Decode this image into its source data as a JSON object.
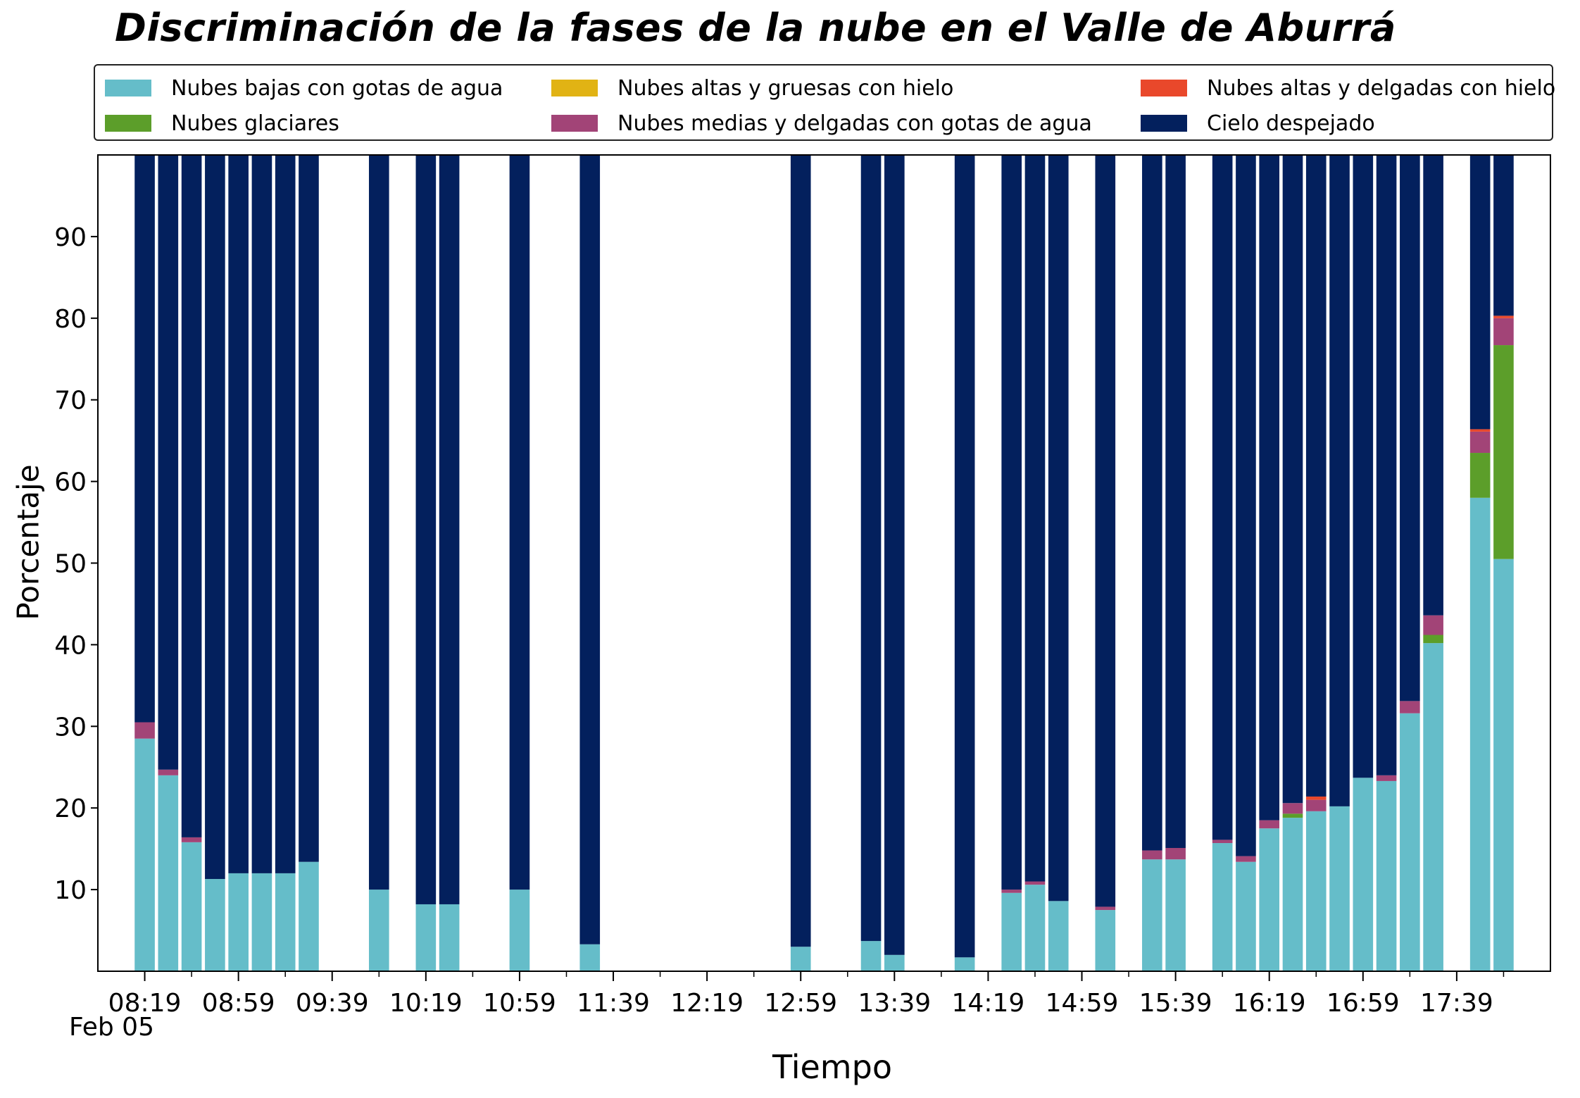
{
  "chart_data": {
    "type": "bar",
    "stacked": true,
    "title": "Discriminación de la fases de la nube en el Valle de Aburrá",
    "xlabel": "Tiempo",
    "ylabel": "Porcentaje",
    "date_label": "Feb 05",
    "ylim": [
      0,
      100
    ],
    "yticks": [
      10,
      20,
      30,
      40,
      50,
      60,
      70,
      80,
      90
    ],
    "xlim": [
      "07:59",
      "18:19"
    ],
    "xtick_labels": [
      "08:19",
      "08:59",
      "09:39",
      "10:19",
      "10:59",
      "11:39",
      "12:19",
      "12:59",
      "13:39",
      "14:19",
      "14:59",
      "15:39",
      "16:19",
      "16:59",
      "17:39"
    ],
    "legend_position": "top",
    "grid": false,
    "series": [
      {
        "key": "bajas",
        "name": "Nubes bajas con gotas de agua",
        "color": "#65bdc9"
      },
      {
        "key": "glaciares",
        "name": "Nubes glaciares",
        "color": "#5c9e2a"
      },
      {
        "key": "altas_gruesas",
        "name": "Nubes altas y gruesas con hielo",
        "color": "#e1b314"
      },
      {
        "key": "medias_delgadas",
        "name": "Nubes medias y delgadas con gotas de agua",
        "color": "#a24477"
      },
      {
        "key": "altas_delgadas",
        "name": "Nubes altas y delgadas con hielo",
        "color": "#e9482b"
      },
      {
        "key": "despejado",
        "name": "Cielo despejado",
        "color": "#03205d"
      }
    ],
    "bars": [
      {
        "time": "08:19",
        "bajas": 28.5,
        "glaciares": 0,
        "altas_gruesas": 0,
        "medias_delgadas": 2.0,
        "altas_delgadas": 0,
        "despejado": 69.5
      },
      {
        "time": "08:29",
        "bajas": 24.0,
        "glaciares": 0,
        "altas_gruesas": 0,
        "medias_delgadas": 0.7,
        "altas_delgadas": 0,
        "despejado": 75.3
      },
      {
        "time": "08:39",
        "bajas": 15.8,
        "glaciares": 0,
        "altas_gruesas": 0,
        "medias_delgadas": 0.6,
        "altas_delgadas": 0,
        "despejado": 83.6
      },
      {
        "time": "08:49",
        "bajas": 11.3,
        "glaciares": 0,
        "altas_gruesas": 0,
        "medias_delgadas": 0,
        "altas_delgadas": 0,
        "despejado": 88.7
      },
      {
        "time": "08:59",
        "bajas": 12.0,
        "glaciares": 0,
        "altas_gruesas": 0,
        "medias_delgadas": 0,
        "altas_delgadas": 0,
        "despejado": 88.0
      },
      {
        "time": "09:09",
        "bajas": 12.0,
        "glaciares": 0,
        "altas_gruesas": 0,
        "medias_delgadas": 0,
        "altas_delgadas": 0,
        "despejado": 88.0
      },
      {
        "time": "09:19",
        "bajas": 12.0,
        "glaciares": 0,
        "altas_gruesas": 0,
        "medias_delgadas": 0,
        "altas_delgadas": 0,
        "despejado": 88.0
      },
      {
        "time": "09:29",
        "bajas": 13.4,
        "glaciares": 0,
        "altas_gruesas": 0,
        "medias_delgadas": 0,
        "altas_delgadas": 0,
        "despejado": 86.6
      },
      {
        "time": "09:59",
        "bajas": 10.0,
        "glaciares": 0,
        "altas_gruesas": 0,
        "medias_delgadas": 0,
        "altas_delgadas": 0,
        "despejado": 90.0
      },
      {
        "time": "10:19",
        "bajas": 8.2,
        "glaciares": 0,
        "altas_gruesas": 0,
        "medias_delgadas": 0,
        "altas_delgadas": 0,
        "despejado": 91.8
      },
      {
        "time": "10:29",
        "bajas": 8.2,
        "glaciares": 0,
        "altas_gruesas": 0,
        "medias_delgadas": 0,
        "altas_delgadas": 0,
        "despejado": 91.8
      },
      {
        "time": "10:59",
        "bajas": 10.0,
        "glaciares": 0,
        "altas_gruesas": 0,
        "medias_delgadas": 0,
        "altas_delgadas": 0,
        "despejado": 90.0
      },
      {
        "time": "11:29",
        "bajas": 3.3,
        "glaciares": 0,
        "altas_gruesas": 0,
        "medias_delgadas": 0,
        "altas_delgadas": 0,
        "despejado": 96.7
      },
      {
        "time": "12:59",
        "bajas": 3.0,
        "glaciares": 0,
        "altas_gruesas": 0,
        "medias_delgadas": 0,
        "altas_delgadas": 0,
        "despejado": 97.0
      },
      {
        "time": "13:29",
        "bajas": 3.7,
        "glaciares": 0,
        "altas_gruesas": 0,
        "medias_delgadas": 0,
        "altas_delgadas": 0,
        "despejado": 96.3
      },
      {
        "time": "13:39",
        "bajas": 2.0,
        "glaciares": 0,
        "altas_gruesas": 0,
        "medias_delgadas": 0,
        "altas_delgadas": 0,
        "despejado": 98.0
      },
      {
        "time": "14:09",
        "bajas": 1.7,
        "glaciares": 0,
        "altas_gruesas": 0,
        "medias_delgadas": 0,
        "altas_delgadas": 0,
        "despejado": 98.3
      },
      {
        "time": "14:29",
        "bajas": 9.6,
        "glaciares": 0,
        "altas_gruesas": 0,
        "medias_delgadas": 0.4,
        "altas_delgadas": 0,
        "despejado": 90.0
      },
      {
        "time": "14:39",
        "bajas": 10.6,
        "glaciares": 0,
        "altas_gruesas": 0,
        "medias_delgadas": 0.4,
        "altas_delgadas": 0,
        "despejado": 89.0
      },
      {
        "time": "14:49",
        "bajas": 8.6,
        "glaciares": 0,
        "altas_gruesas": 0,
        "medias_delgadas": 0,
        "altas_delgadas": 0,
        "despejado": 91.4
      },
      {
        "time": "15:09",
        "bajas": 7.5,
        "glaciares": 0,
        "altas_gruesas": 0,
        "medias_delgadas": 0.4,
        "altas_delgadas": 0,
        "despejado": 92.1
      },
      {
        "time": "15:29",
        "bajas": 13.7,
        "glaciares": 0,
        "altas_gruesas": 0,
        "medias_delgadas": 1.1,
        "altas_delgadas": 0,
        "despejado": 85.2
      },
      {
        "time": "15:39",
        "bajas": 13.7,
        "glaciares": 0,
        "altas_gruesas": 0,
        "medias_delgadas": 1.4,
        "altas_delgadas": 0,
        "despejado": 84.9
      },
      {
        "time": "15:59",
        "bajas": 15.7,
        "glaciares": 0,
        "altas_gruesas": 0,
        "medias_delgadas": 0.4,
        "altas_delgadas": 0,
        "despejado": 83.9
      },
      {
        "time": "16:09",
        "bajas": 13.4,
        "glaciares": 0,
        "altas_gruesas": 0,
        "medias_delgadas": 0.7,
        "altas_delgadas": 0,
        "despejado": 85.9
      },
      {
        "time": "16:19",
        "bajas": 17.5,
        "glaciares": 0,
        "altas_gruesas": 0,
        "medias_delgadas": 1.0,
        "altas_delgadas": 0,
        "despejado": 81.5
      },
      {
        "time": "16:29",
        "bajas": 18.8,
        "glaciares": 0.5,
        "altas_gruesas": 0,
        "medias_delgadas": 1.3,
        "altas_delgadas": 0,
        "despejado": 79.4
      },
      {
        "time": "16:39",
        "bajas": 19.6,
        "glaciares": 0,
        "altas_gruesas": 0,
        "medias_delgadas": 1.4,
        "altas_delgadas": 0.4,
        "despejado": 78.6
      },
      {
        "time": "16:49",
        "bajas": 20.2,
        "glaciares": 0,
        "altas_gruesas": 0,
        "medias_delgadas": 0,
        "altas_delgadas": 0,
        "despejado": 79.8
      },
      {
        "time": "16:59",
        "bajas": 23.7,
        "glaciares": 0,
        "altas_gruesas": 0,
        "medias_delgadas": 0,
        "altas_delgadas": 0,
        "despejado": 76.3
      },
      {
        "time": "17:09",
        "bajas": 23.3,
        "glaciares": 0,
        "altas_gruesas": 0,
        "medias_delgadas": 0.7,
        "altas_delgadas": 0,
        "despejado": 76.0
      },
      {
        "time": "17:19",
        "bajas": 31.6,
        "glaciares": 0,
        "altas_gruesas": 0,
        "medias_delgadas": 1.5,
        "altas_delgadas": 0,
        "despejado": 66.9
      },
      {
        "time": "17:29",
        "bajas": 40.2,
        "glaciares": 1.0,
        "altas_gruesas": 0,
        "medias_delgadas": 2.4,
        "altas_delgadas": 0,
        "despejado": 56.4
      },
      {
        "time": "17:49",
        "bajas": 58.0,
        "glaciares": 5.5,
        "altas_gruesas": 0,
        "medias_delgadas": 2.6,
        "altas_delgadas": 0.3,
        "despejado": 33.6
      },
      {
        "time": "17:59",
        "bajas": 50.5,
        "glaciares": 26.2,
        "altas_gruesas": 0,
        "medias_delgadas": 3.3,
        "altas_delgadas": 0.3,
        "despejado": 19.7
      }
    ]
  }
}
